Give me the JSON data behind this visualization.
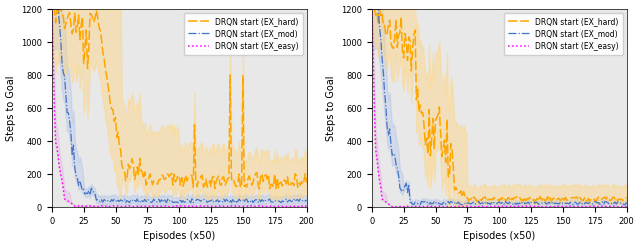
{
  "xlabel": "Episodes (x50)",
  "ylabel": "Steps to Goal",
  "xlim": [
    0,
    200
  ],
  "ylim": [
    0,
    1200
  ],
  "xticks": [
    0,
    25,
    50,
    75,
    100,
    125,
    150,
    175,
    200
  ],
  "yticks": [
    0,
    200,
    400,
    600,
    800,
    1000,
    1200
  ],
  "legend_labels": [
    "DRQN start (EX_hard)",
    "DRQN start (EX_mod)",
    "DRQN start (EX_easy)"
  ],
  "colors": {
    "hard": "#FFA500",
    "hard_fill": "#FFD580",
    "mod": "#4472C4",
    "mod_fill": "#A0B8E8",
    "easy": "#FF00FF",
    "easy_fill": "#E0A0E0"
  },
  "fill_alpha_hard": 0.45,
  "fill_alpha_mod": 0.3,
  "fill_alpha_easy": 0.25,
  "bg_color": "#e8e8e8"
}
